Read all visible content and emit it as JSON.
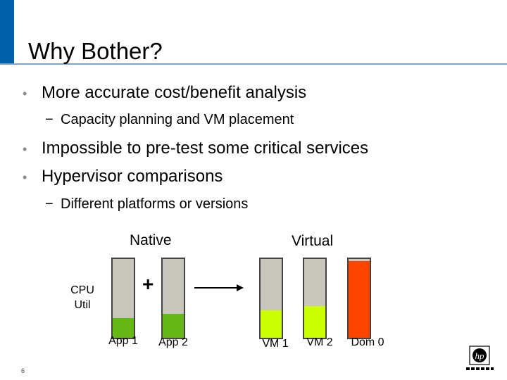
{
  "slide": {
    "title": "Why Bother?",
    "bullets": [
      "More accurate cost/benefit analysis",
      "Impossible to pre-test some critical services",
      "Hypervisor comparisons"
    ],
    "subbullets": [
      "Capacity planning and VM placement",
      "Different platforms or versions"
    ],
    "page_number": "6"
  },
  "diagram": {
    "native_label": "Native",
    "virtual_label": "Virtual",
    "axis_label_line1": "CPU",
    "axis_label_line2": "Util",
    "plus": "+",
    "bars": [
      {
        "label": "App 1",
        "utilization": 0.25,
        "color": "#66b814"
      },
      {
        "label": "App 2",
        "utilization": 0.3,
        "color": "#66b814"
      },
      {
        "label": "VM 1",
        "utilization": 0.35,
        "color": "#ccff00"
      },
      {
        "label": "VM 2",
        "utilization": 0.4,
        "color": "#ccff00"
      },
      {
        "label": "Dom 0",
        "utilization": 0.97,
        "color": "#ff4400"
      }
    ]
  },
  "colors": {
    "accent": "#0060a8",
    "bar_empty": "#c8c6bd"
  },
  "icons": {
    "logo": "hp-logo"
  }
}
